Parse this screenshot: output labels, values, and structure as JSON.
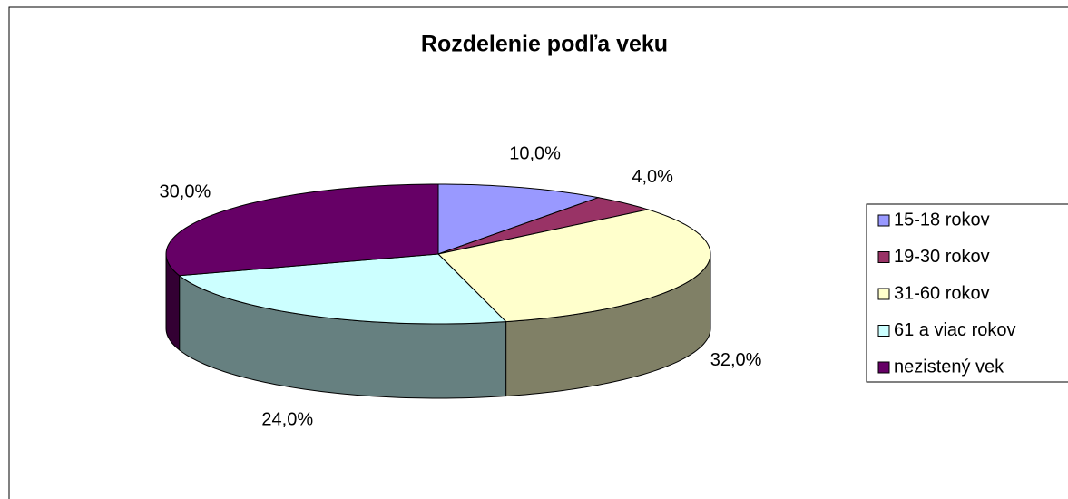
{
  "chart_data": {
    "type": "pie",
    "title": "Rozdelenie podľa veku",
    "categories": [
      "15-18 rokov",
      "19-30 rokov",
      "31-60 rokov",
      "61 a viac rokov",
      "nezistený vek"
    ],
    "values": [
      10,
      4,
      32,
      24,
      30
    ],
    "value_labels": [
      "10,0%",
      "4,0%",
      "32,0%",
      "24,0%",
      "30,0%"
    ],
    "colors": [
      "#9999ff",
      "#993366",
      "#ffffcc",
      "#ccffff",
      "#660066"
    ],
    "legend": "right"
  }
}
